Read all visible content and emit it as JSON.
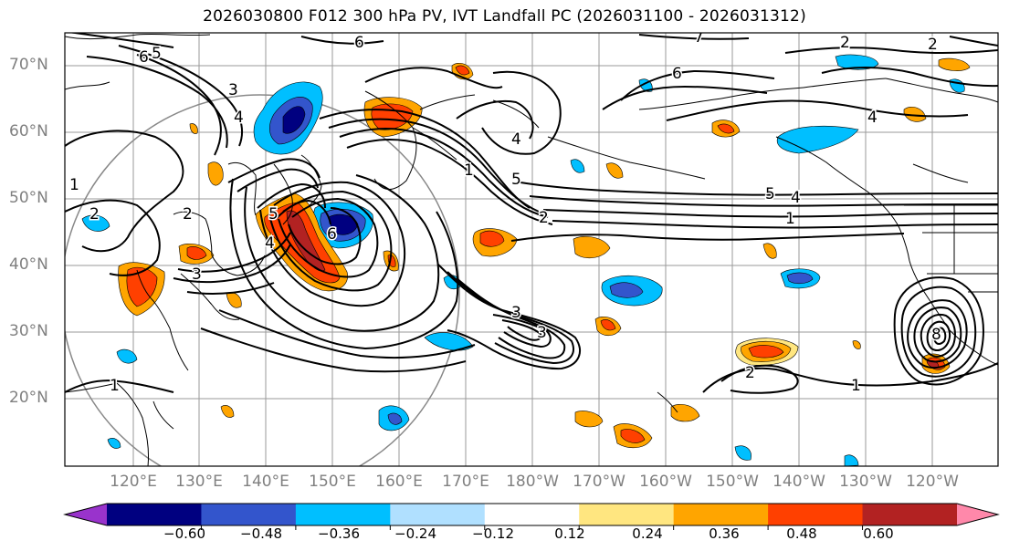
{
  "title": "2026030800 F012 300 hPa PV, IVT Landfall PC (2026031100 - 2026031312)",
  "lat_labels": [
    "70°N",
    "60°N",
    "50°N",
    "40°N",
    "30°N",
    "20°N"
  ],
  "lon_labels": [
    "120°E",
    "130°E",
    "140°E",
    "150°E",
    "160°E",
    "170°E",
    "180°W",
    "170°W",
    "160°W",
    "150°W",
    "140°W",
    "130°W",
    "120°W"
  ],
  "colorbar": {
    "colors": [
      "#9933cc",
      "#000080",
      "#3355cc",
      "#00bfff",
      "#b0e0ff",
      "#ffffff",
      "#ffe680",
      "#ffa500",
      "#ff4000",
      "#b22222",
      "#ff88aa"
    ],
    "tick_labels": [
      "−0.60",
      "−0.48",
      "−0.36",
      "−0.24",
      "−0.12",
      "0.12",
      "0.24",
      "0.36",
      "0.48",
      "0.60"
    ]
  },
  "contour_labels": [
    "6",
    "5",
    "3",
    "4",
    "2",
    "1",
    "2",
    "3",
    "6",
    "5",
    "4",
    "1",
    "2",
    "3",
    "1",
    "5",
    "4",
    "6",
    "4",
    "2",
    "6",
    "7",
    "5",
    "4",
    "1",
    "2",
    "1",
    "8",
    "2",
    "3"
  ]
}
